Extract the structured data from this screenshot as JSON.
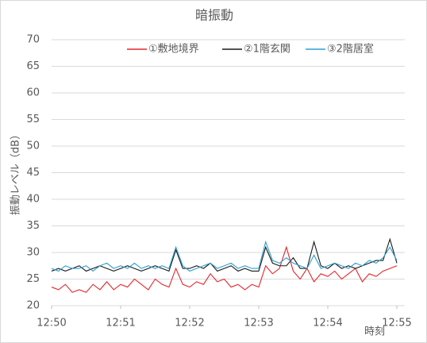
{
  "chart_data": {
    "type": "line",
    "title": "暗振動",
    "x_label": "時刻",
    "y_label": "振動レベル（dB）",
    "x": [
      0,
      0.1,
      0.2,
      0.3,
      0.4,
      0.5,
      0.6,
      0.7,
      0.8,
      0.9,
      1.0,
      1.1,
      1.2,
      1.3,
      1.4,
      1.5,
      1.6,
      1.7,
      1.8,
      1.9,
      2.0,
      2.1,
      2.2,
      2.3,
      2.4,
      2.5,
      2.6,
      2.7,
      2.8,
      2.9,
      3.0,
      3.1,
      3.2,
      3.3,
      3.4,
      3.5,
      3.6,
      3.7,
      3.8,
      3.9,
      4.0,
      4.1,
      4.2,
      4.3,
      4.4,
      4.5,
      4.6,
      4.7,
      4.8,
      4.9,
      5.0
    ],
    "series": [
      {
        "name": "①敷地境界",
        "color": "#e3262b",
        "values": [
          23.5,
          23,
          24,
          22.5,
          23,
          22.5,
          24,
          23,
          24.5,
          23,
          24,
          23.5,
          25,
          24,
          23,
          25,
          24,
          23.5,
          27,
          24,
          23.5,
          24.5,
          24,
          26,
          24.5,
          25,
          23.5,
          24,
          23,
          24,
          23.5,
          27.5,
          26,
          27,
          31,
          26.5,
          25,
          27,
          24.5,
          26,
          25.5,
          26.5,
          25,
          26,
          27,
          24.5,
          26,
          25.5,
          26.5,
          27,
          27.5
        ]
      },
      {
        "name": "②1階玄関",
        "color": "#1a1a1a",
        "values": [
          26.5,
          27,
          26.5,
          27,
          27.5,
          26.5,
          27,
          27.5,
          27,
          26.5,
          27,
          27.5,
          27,
          26.5,
          27,
          27.5,
          27,
          26.5,
          30.5,
          27,
          27,
          27.5,
          27,
          28,
          26.5,
          27,
          27.5,
          26.5,
          27,
          26.5,
          26.5,
          31,
          28,
          27.5,
          27.5,
          29,
          27,
          27,
          32,
          27.5,
          27,
          28,
          27,
          27.5,
          27,
          27.5,
          28,
          28.5,
          28.5,
          32.5,
          28
        ]
      },
      {
        "name": "③2階居室",
        "color": "#2e9fd0",
        "values": [
          27,
          26.5,
          27.5,
          27,
          27,
          27.5,
          26.5,
          27.5,
          28,
          27,
          27.5,
          27,
          28,
          27,
          27.5,
          27,
          27.5,
          27,
          31,
          27.5,
          26.5,
          27,
          27.5,
          28,
          27,
          27.5,
          28,
          27,
          27.5,
          27,
          27,
          32,
          28.5,
          28,
          29,
          28,
          27.5,
          27,
          29.5,
          27,
          27.5,
          28,
          27.5,
          27,
          28,
          27.5,
          28.5,
          28,
          29,
          31,
          28.5
        ]
      }
    ],
    "xlim": [
      0,
      5
    ],
    "xticks": [
      {
        "value": 0,
        "label": "12:50"
      },
      {
        "value": 1,
        "label": "12:51"
      },
      {
        "value": 2,
        "label": "12:52"
      },
      {
        "value": 3,
        "label": "12:53"
      },
      {
        "value": 4,
        "label": "12:54"
      },
      {
        "value": 5,
        "label": "12:55"
      }
    ],
    "ylim": [
      20,
      70
    ],
    "yticks": [
      20,
      25,
      30,
      35,
      40,
      45,
      50,
      55,
      60,
      65,
      70
    ],
    "grid": true
  }
}
